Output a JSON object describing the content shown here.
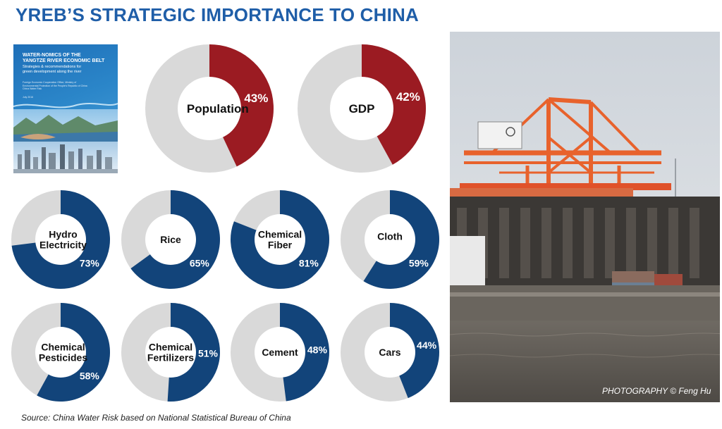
{
  "title": "YREB’S STRATEGIC IMPORTANCE TO CHINA",
  "report_cover": {
    "title_line1": "WATER-NOMICS OF THE",
    "title_line2": "YANGTZE RIVER ECONOMIC BELT",
    "subtitle_line1": "Strategies & recommendations for",
    "subtitle_line2": "green development along the river",
    "publisher_line1": "Foreign Economic Cooperation Office, Ministry of",
    "publisher_line2": "Environmental Protection of the People's Republic of China",
    "publisher_line3": "China Water Risk",
    "date": "July 2016"
  },
  "colors": {
    "title": "#1f5ea8",
    "red": "#9b1b22",
    "blue": "#12447a",
    "gray": "#d9d9d9"
  },
  "chart_data": [
    {
      "type": "pie",
      "label": "Population",
      "value": 43,
      "display": "43%",
      "color": "red"
    },
    {
      "type": "pie",
      "label": "GDP",
      "value": 42,
      "display": "42%",
      "color": "red"
    },
    {
      "type": "pie",
      "label": "Hydro Electricity",
      "value": 73,
      "display": "73%",
      "color": "blue"
    },
    {
      "type": "pie",
      "label": "Rice",
      "value": 65,
      "display": "65%",
      "color": "blue"
    },
    {
      "type": "pie",
      "label": "Chemical Fiber",
      "value": 81,
      "display": "81%",
      "color": "blue"
    },
    {
      "type": "pie",
      "label": "Cloth",
      "value": 59,
      "display": "59%",
      "color": "blue"
    },
    {
      "type": "pie",
      "label": "Chemical Pesticides",
      "value": 58,
      "display": "58%",
      "color": "blue"
    },
    {
      "type": "pie",
      "label": "Chemical Fertilizers",
      "value": 51,
      "display": "51%",
      "color": "blue"
    },
    {
      "type": "pie",
      "label": "Cement",
      "value": 48,
      "display": "48%",
      "color": "blue"
    },
    {
      "type": "pie",
      "label": "Cars",
      "value": 44,
      "display": "44%",
      "color": "blue"
    }
  ],
  "photo_credit": "PHOTOGRAPHY © Feng Hu",
  "source": "Source: China Water Risk based on National Statistical Bureau of China"
}
